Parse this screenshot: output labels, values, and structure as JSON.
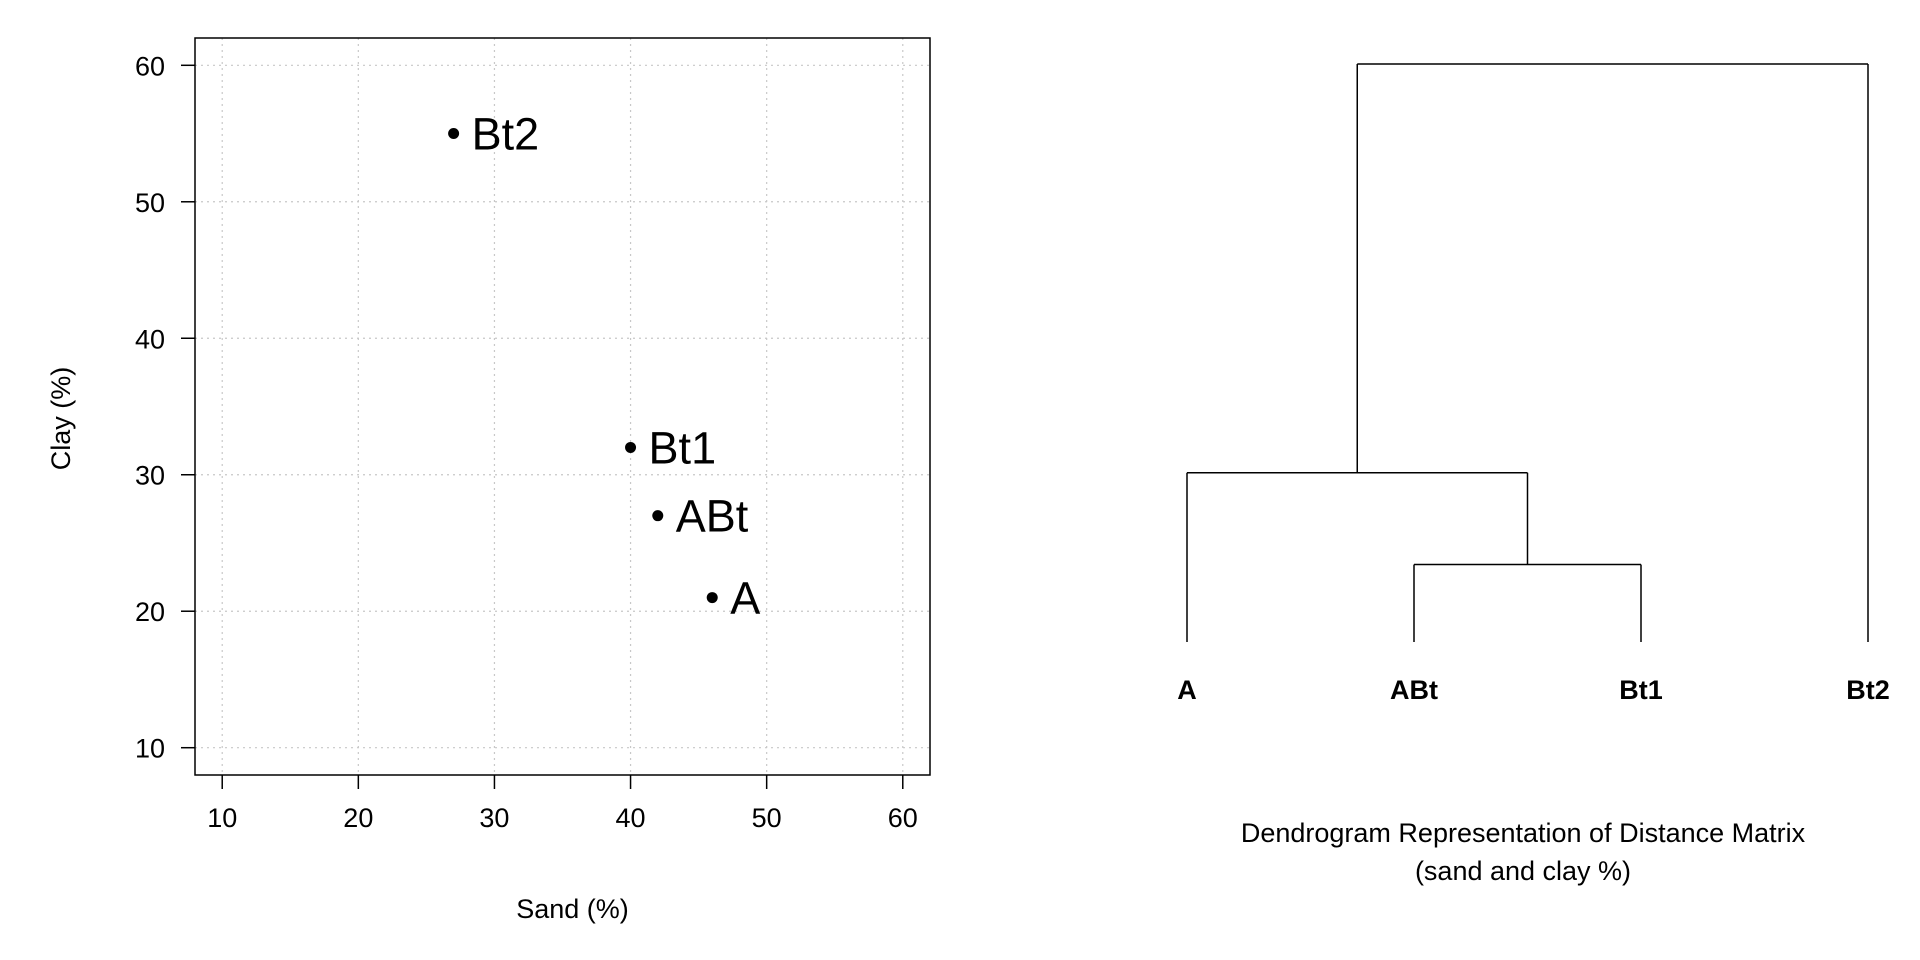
{
  "chart_data": [
    {
      "type": "scatter",
      "title": "",
      "xlabel": "Sand (%)",
      "ylabel": "Clay (%)",
      "xlim": [
        8,
        62
      ],
      "ylim": [
        8,
        62
      ],
      "xticks": [
        10,
        20,
        30,
        40,
        50,
        60
      ],
      "yticks": [
        10,
        20,
        30,
        40,
        50,
        60
      ],
      "grid": true,
      "points": [
        {
          "label": "Bt2",
          "x": 27,
          "y": 55
        },
        {
          "label": "Bt1",
          "x": 40,
          "y": 32
        },
        {
          "label": "ABt",
          "x": 42,
          "y": 27
        },
        {
          "label": "A",
          "x": 46,
          "y": 21
        }
      ]
    },
    {
      "type": "dendrogram",
      "title": "Dendrogram Representation of Distance Matrix",
      "subtitle": "(sand and clay %)",
      "leaves": [
        "A",
        "ABt",
        "Bt1",
        "Bt2"
      ],
      "merges": [
        {
          "left": "ABt",
          "right": "Bt1",
          "height": 5.4
        },
        {
          "left": "A",
          "right": "ABt+Bt1",
          "height": 11.8
        },
        {
          "left": "A+ABt+Bt1",
          "right": "Bt2",
          "height": 40.3
        }
      ],
      "ylim": [
        0,
        40.3
      ]
    }
  ]
}
